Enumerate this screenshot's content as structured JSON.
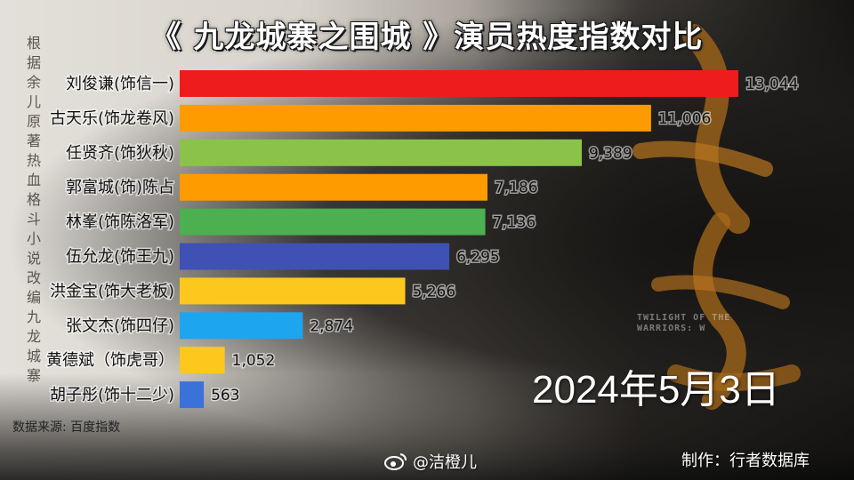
{
  "title": "《 九龙城寨之围城 》演员热度指数对比",
  "side_text": "根据余儿原著热血格斗小说改编九龙城寨",
  "poster_text": "TWILIGHT OF THE WARRIORS: W",
  "date": "2024年5月3日",
  "source": "数据来源: 百度指数",
  "watermark": "@洁橙儿",
  "credit": "制作：行者数据库",
  "colors": {
    "red": "#ee1c1c",
    "orange": "#fd9b00",
    "lightgreen": "#8bc34a",
    "green": "#4caf50",
    "indigo": "#3f51b5",
    "yellow": "#fdc81e",
    "lightblue": "#1ea5f0",
    "blue": "#3b72d9"
  },
  "chart_data": {
    "type": "bar",
    "orientation": "horizontal",
    "title": "《 九龙城寨之围城 》演员热度指数对比",
    "categories": [
      "刘俊谦(饰信一)",
      "古天乐(饰龙卷风)",
      "任贤齐(饰狄秋)",
      "郭富城(饰)陈占",
      "林峯(饰陈洛军)",
      "伍允龙(饰王九)",
      "洪金宝(饰大老板)",
      "张文杰(饰四仔)",
      "黄德斌（饰虎哥）",
      "胡子彤(饰十二少)"
    ],
    "values": [
      13044,
      11006,
      9389,
      7186,
      7136,
      6295,
      5266,
      2874,
      1052,
      563
    ],
    "value_labels": [
      "13,044",
      "11,006",
      "9,389",
      "7,186",
      "7,136",
      "6,295",
      "5,266",
      "2,874",
      "1,052",
      "563"
    ],
    "bar_colors": [
      "#ee1c1c",
      "#fd9b00",
      "#8bc34a",
      "#fd9b00",
      "#4caf50",
      "#3f51b5",
      "#fdc81e",
      "#1ea5f0",
      "#fdc81e",
      "#3b72d9"
    ],
    "xlim": [
      0,
      13044
    ],
    "grid": false,
    "legend": "none"
  }
}
